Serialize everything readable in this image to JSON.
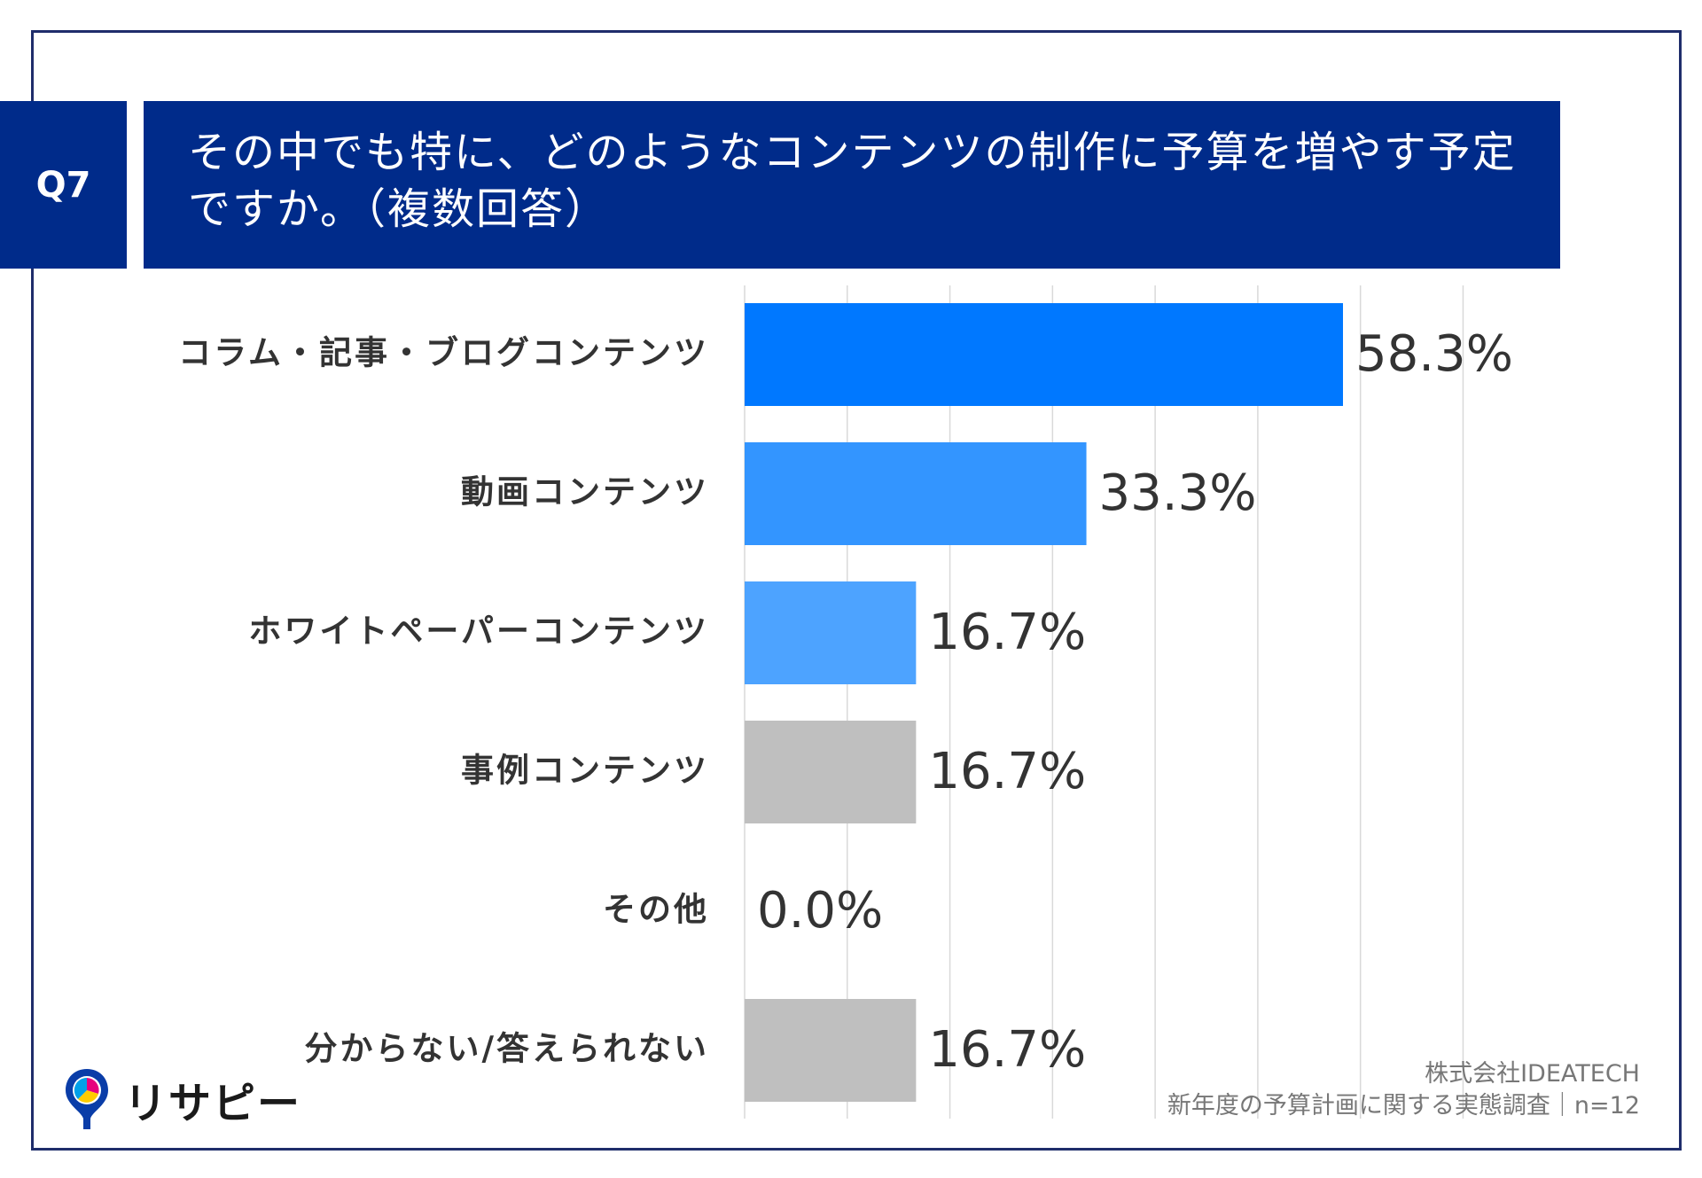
{
  "question": {
    "badge": "Q7",
    "title_line1": "その中でも特に、どのようなコンテンツの制作に予算を増やす予定",
    "title_line2": "ですか。（複数回答）"
  },
  "chart_data": {
    "type": "bar",
    "orientation": "horizontal",
    "categories": [
      "コラム・記事・ブログコンテンツ",
      "動画コンテンツ",
      "ホワイトペーパーコンテンツ",
      "事例コンテンツ",
      "その他",
      "分からない/答えられない"
    ],
    "values": [
      58.3,
      33.3,
      16.7,
      16.7,
      0.0,
      16.7
    ],
    "value_labels": [
      "58.3%",
      "33.3%",
      "16.7%",
      "16.7%",
      "0.0%",
      "16.7%"
    ],
    "bar_colors": [
      "#0078ff",
      "#3395ff",
      "#4da3ff",
      "#bfbfbf",
      "#bfbfbf",
      "#bfbfbf"
    ],
    "xlim": [
      0,
      70
    ],
    "grid": true,
    "gridline_step": 10,
    "unit": "%"
  },
  "footer": {
    "company": "株式会社IDEATECH",
    "survey": "新年度の予算計画に関する実態調査｜n=12"
  },
  "logo": {
    "text": "リサピー",
    "icon": "risapy-pin-icon"
  },
  "colors": {
    "header_bg": "#002b8a",
    "frame": "#1f2d6b"
  }
}
